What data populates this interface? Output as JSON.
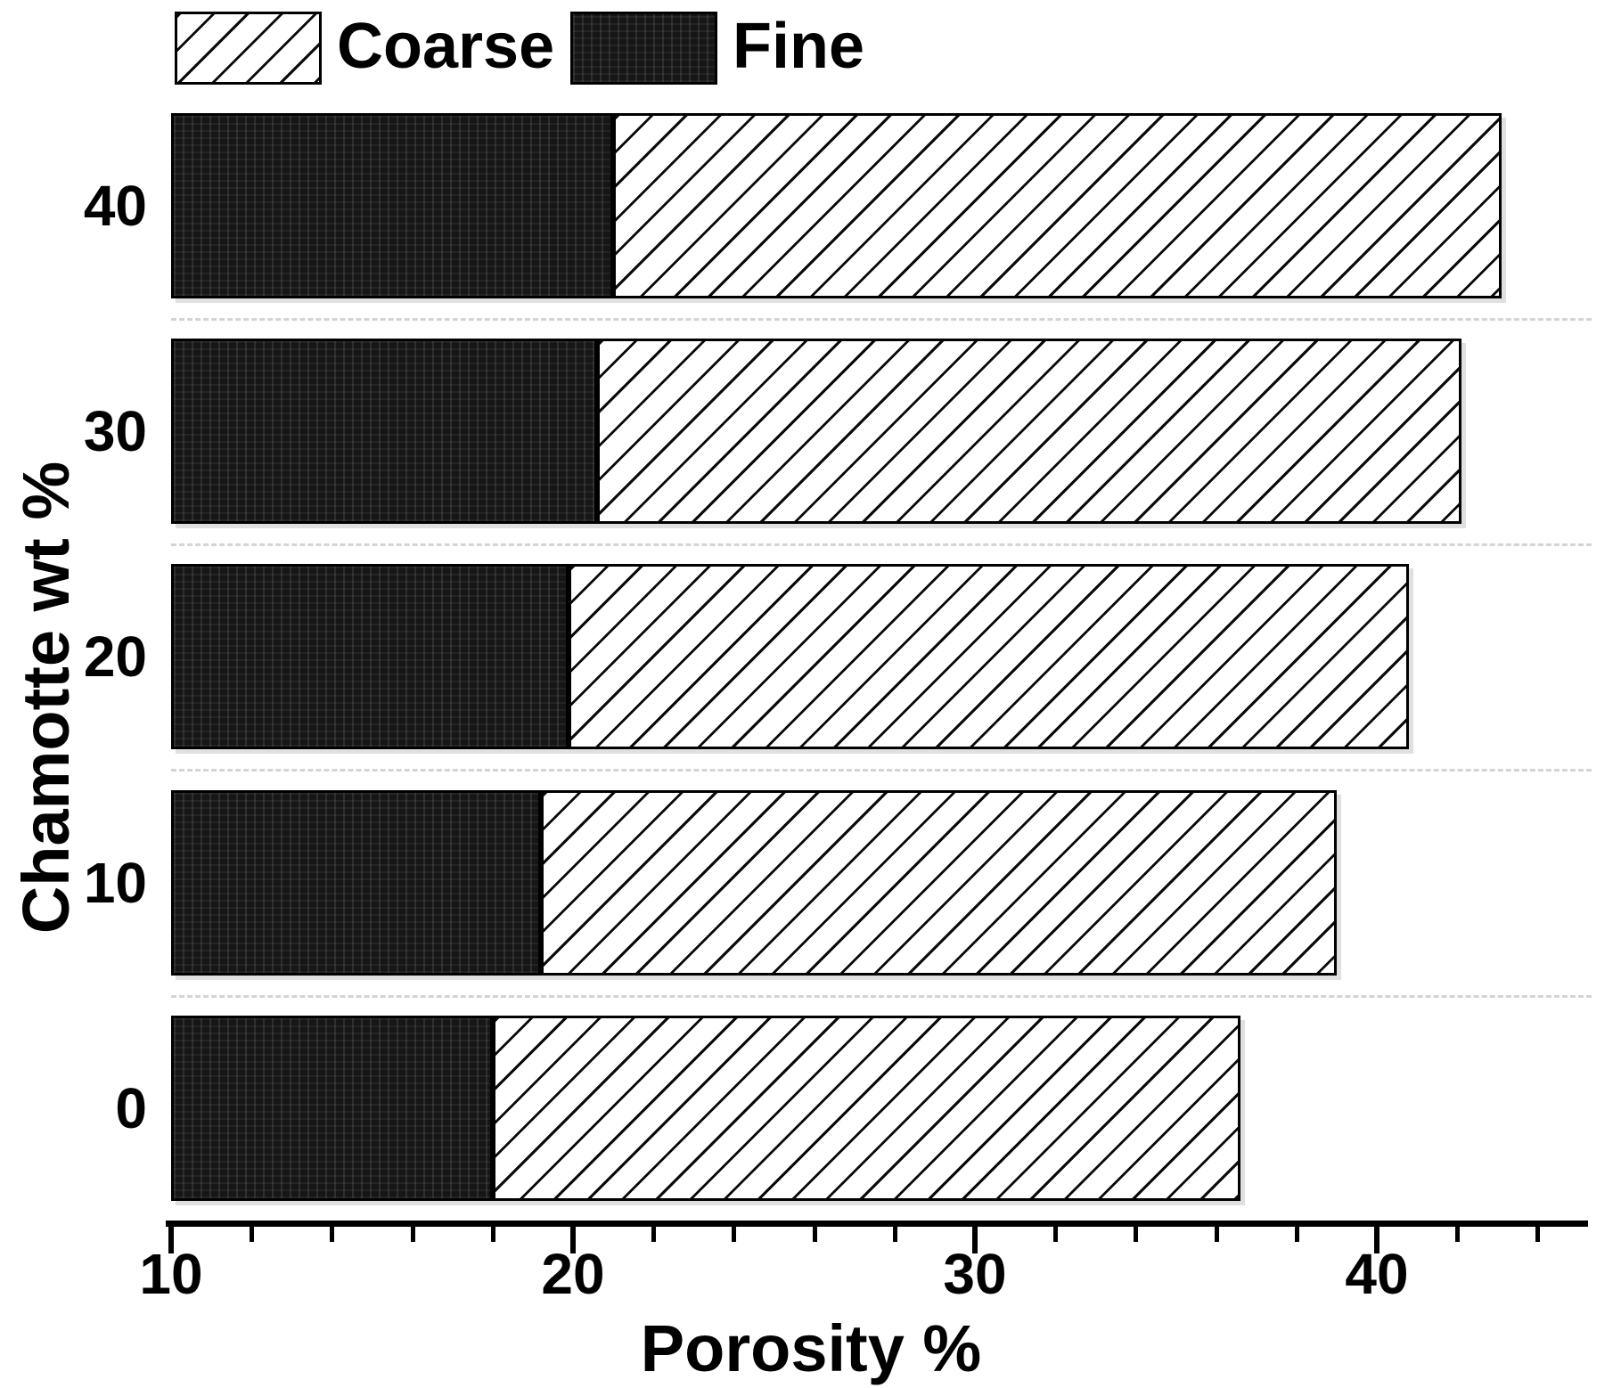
{
  "chart_data": {
    "type": "bar",
    "orientation": "horizontal",
    "stacked": true,
    "title": "",
    "xlabel": "Porosity %",
    "ylabel": "Chamotte wt %",
    "x_axis": {
      "min": 10,
      "max": 45.1,
      "major_ticks": [
        10,
        20,
        30,
        40
      ],
      "tick_labels": [
        "10",
        "20",
        "30",
        "40"
      ],
      "minor_tick_step": 2
    },
    "bars_start_at": 10,
    "categories_top_to_bottom": [
      "40",
      "30",
      "20",
      "10",
      "0"
    ],
    "series": [
      {
        "name": "Fine",
        "style": "dark-woven-fill"
      },
      {
        "name": "Coarse",
        "style": "white-diagonal-hatch"
      }
    ],
    "rows": [
      {
        "category": "40",
        "fine_to": 21.0,
        "coarse_to": 43.1
      },
      {
        "category": "30",
        "fine_to": 20.6,
        "coarse_to": 42.1
      },
      {
        "category": "20",
        "fine_to": 19.9,
        "coarse_to": 40.8
      },
      {
        "category": "10",
        "fine_to": 19.2,
        "coarse_to": 39.0
      },
      {
        "category": "0",
        "fine_to": 18.0,
        "coarse_to": 36.6
      }
    ],
    "legend": {
      "position": "top-left",
      "entries": [
        "Coarse",
        "Fine"
      ]
    },
    "grid": {
      "dashed_row_separators": true,
      "separator_color": "#d4d4d4"
    }
  },
  "colors": {
    "foreground": "#000000",
    "background": "#ffffff",
    "fine_fill": "#161616",
    "gridline": "#d4d4d4"
  }
}
